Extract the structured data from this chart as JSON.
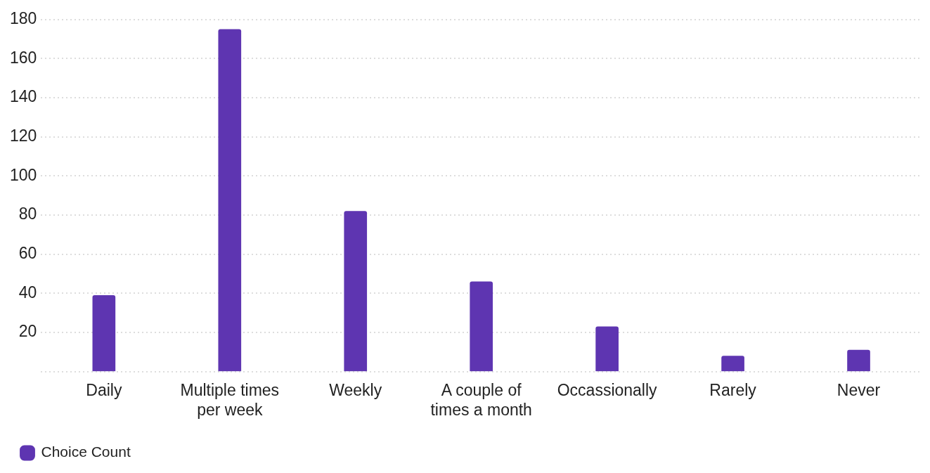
{
  "chart_data": {
    "type": "bar",
    "categories": [
      "Daily",
      "Multiple times per week",
      "Weekly",
      "A couple of times a month",
      "Occassionally",
      "Rarely",
      "Never"
    ],
    "series": [
      {
        "name": "Choice Count",
        "color": "#5e35b1",
        "values": [
          39,
          175,
          82,
          46,
          23,
          8,
          11
        ]
      }
    ],
    "ylim": [
      0,
      180
    ],
    "yticks": [
      {
        "value": 0,
        "label": null
      },
      20,
      40,
      60,
      80,
      100,
      120,
      140,
      160,
      180
    ],
    "grid": "y",
    "legend": "bottom left"
  }
}
